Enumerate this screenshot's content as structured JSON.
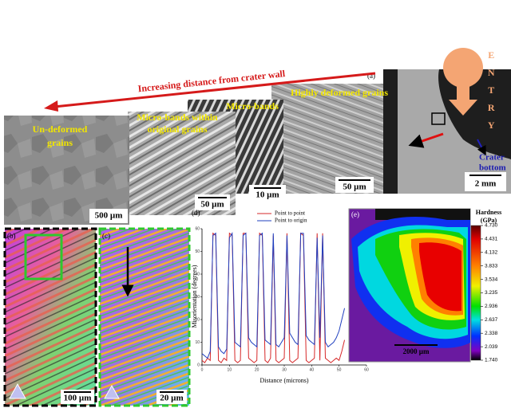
{
  "top_strip": {
    "label": "(a)",
    "arrow_text": "Increasing distance from crater wall",
    "entry": "ENTRY",
    "crater_bottom": [
      "Crater",
      "bottom"
    ],
    "images": [
      {
        "title": [
          "Un-deformed",
          "grains"
        ],
        "scale": "500 µm"
      },
      {
        "title": [
          "Micro-bands within",
          "original grains"
        ],
        "scale": "50 µm"
      },
      {
        "title": [
          "Micro-bands"
        ],
        "scale": "10 µm"
      },
      {
        "title": [
          "Highly deformed grains"
        ],
        "scale": "50 µm"
      }
    ],
    "crater_scale": "2 mm"
  },
  "panel_b": {
    "label": "(b)",
    "scale": "100 µm"
  },
  "panel_c": {
    "label": "(c)",
    "scale": "20 µm"
  },
  "chart_data": {
    "type": "line",
    "panel_label": "(d)",
    "x_label": "Distance (microns)",
    "y_label": "Misorientation (degrees)",
    "x": [
      0,
      1,
      2,
      3,
      4,
      5,
      6,
      7,
      8,
      9,
      10,
      11,
      12,
      13,
      14,
      15,
      16,
      17,
      18,
      19,
      20,
      21,
      22,
      23,
      24,
      25,
      26,
      27,
      28,
      29,
      30,
      31,
      32,
      33,
      34,
      35,
      36,
      37,
      38,
      39,
      40,
      41,
      42,
      43,
      44,
      45,
      46,
      47,
      48,
      49,
      50,
      51,
      52
    ],
    "series": [
      {
        "name": "Point to point",
        "color": "#d62728",
        "values": [
          2,
          1,
          3,
          2,
          58,
          57,
          2,
          1,
          3,
          2,
          58,
          57,
          2,
          1,
          2,
          58,
          58,
          3,
          2,
          1,
          2,
          58,
          57,
          2,
          1,
          3,
          57,
          2,
          1,
          2,
          3,
          58,
          2,
          1,
          2,
          3,
          58,
          57,
          2,
          1,
          2,
          3,
          58,
          2,
          58,
          3,
          2,
          1,
          2,
          3,
          2,
          6,
          11
        ]
      },
      {
        "name": "Point to origin",
        "color": "#1f3fbf",
        "values": [
          5,
          4,
          3,
          6,
          57,
          58,
          8,
          6,
          5,
          7,
          56,
          58,
          10,
          9,
          8,
          57,
          58,
          12,
          10,
          9,
          8,
          57,
          58,
          11,
          10,
          9,
          58,
          9,
          8,
          10,
          12,
          57,
          14,
          12,
          10,
          9,
          58,
          58,
          13,
          11,
          10,
          9,
          56,
          12,
          57,
          10,
          8,
          9,
          10,
          12,
          15,
          20,
          25
        ]
      }
    ],
    "xlim": [
      0,
      60
    ],
    "ylim": [
      0,
      60
    ],
    "xticks": [
      0,
      10,
      20,
      30,
      40,
      50,
      60
    ],
    "yticks": [
      0,
      10,
      20,
      30,
      40,
      50,
      60
    ]
  },
  "panel_e": {
    "label": "(e)",
    "colorbar_title": "Hardness",
    "colorbar_unit": "(GPa)",
    "clim": [
      1.74,
      4.73
    ],
    "ticks": [
      {
        "value": 4.73,
        "label": "4.730"
      },
      {
        "value": 4.431,
        "label": "4.431"
      },
      {
        "value": 4.132,
        "label": "4.132"
      },
      {
        "value": 3.833,
        "label": "3.833"
      },
      {
        "value": 3.534,
        "label": "3.534"
      },
      {
        "value": 3.235,
        "label": "3.235"
      },
      {
        "value": 2.936,
        "label": "2.936"
      },
      {
        "value": 2.637,
        "label": "2.637"
      },
      {
        "value": 2.338,
        "label": "2.338"
      },
      {
        "value": 2.039,
        "label": "2.039"
      },
      {
        "value": 1.74,
        "label": "1.740"
      }
    ],
    "scale": "2000 µm"
  }
}
